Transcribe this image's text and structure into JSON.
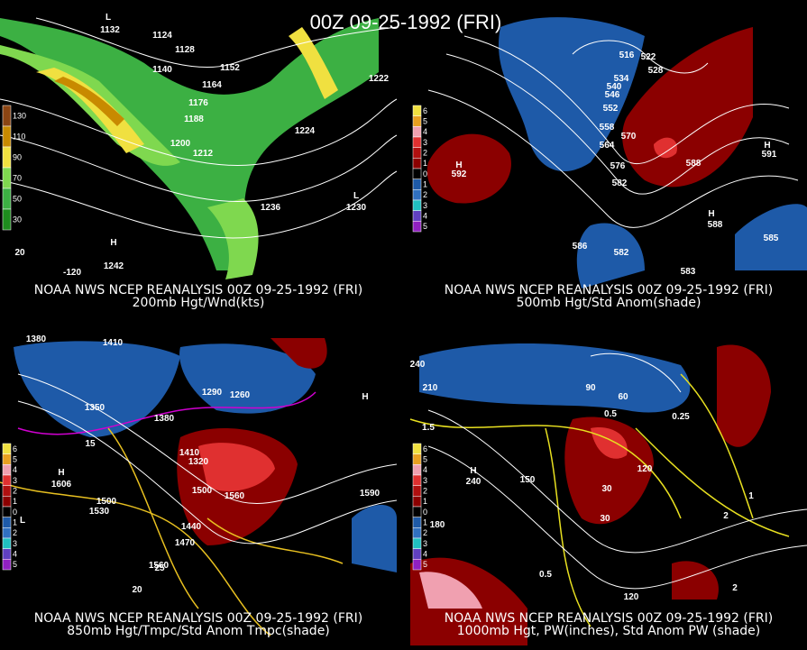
{
  "title": "00Z 09-25-1992 (FRI)",
  "panels": [
    {
      "caption": [
        "NOAA NWS NCEP REANALYSIS 00Z 09-25-1992 (FRI)",
        "200mb Hgt/Wnd(kts)"
      ],
      "colorbar": [
        "130",
        "110",
        "90",
        "70",
        "50",
        "30"
      ],
      "labels": [
        "L",
        "1132",
        "1124",
        "1128",
        "1140",
        "1152",
        "1164",
        "1176",
        "1188",
        "1200",
        "1212",
        "1224",
        "1236",
        "1230",
        "L",
        "1222",
        "H",
        "1242",
        "-120",
        "20"
      ]
    },
    {
      "caption": [
        "NOAA NWS NCEP REANALYSIS 00Z 09-25-1992 (FRI)",
        "500mb Hgt/Std Anom(shade)"
      ],
      "colorbar": [
        "6",
        "5",
        "4",
        "3",
        "2",
        "1",
        "0",
        "1",
        "2",
        "3",
        "4",
        "5"
      ],
      "labels": [
        "516",
        "522",
        "528",
        "534",
        "540",
        "546",
        "552",
        "558",
        "564",
        "570",
        "576",
        "582",
        "588",
        "H",
        "592",
        "H",
        "591",
        "586",
        "582",
        "H",
        "588",
        "585",
        "583"
      ]
    },
    {
      "caption": [
        "NOAA NWS NCEP REANALYSIS 00Z 09-25-1992 (FRI)",
        "850mb Hgt/Tmpc/Std Anom Tmpc(shade)"
      ],
      "colorbar": [
        "6",
        "5",
        "4",
        "3",
        "2",
        "1",
        "0",
        "1",
        "2",
        "3",
        "4",
        "5"
      ],
      "labels": [
        "1380",
        "1410",
        "1350",
        "1380",
        "1290",
        "1260",
        "1320",
        "1500",
        "1560",
        "1590",
        "1530",
        "1440",
        "1470",
        "1410",
        "H",
        "1606",
        "H",
        "1500",
        "L",
        "1560",
        "25",
        "20",
        "15"
      ]
    },
    {
      "caption": [
        "NOAA NWS NCEP REANALYSIS 00Z 09-25-1992 (FRI)",
        "1000mb Hgt, PW(inches), Std Anom PW (shade)"
      ],
      "colorbar": [
        "6",
        "5",
        "4",
        "3",
        "2",
        "1",
        "0",
        "1",
        "2",
        "3",
        "4",
        "5"
      ],
      "labels": [
        "240",
        "210",
        "180",
        "150",
        "120",
        "90",
        "60",
        "30",
        "0.5",
        "0.25",
        "1.5",
        "1",
        "2",
        "H",
        "240",
        "0.5",
        "120",
        "30",
        "2"
      ]
    }
  ]
}
